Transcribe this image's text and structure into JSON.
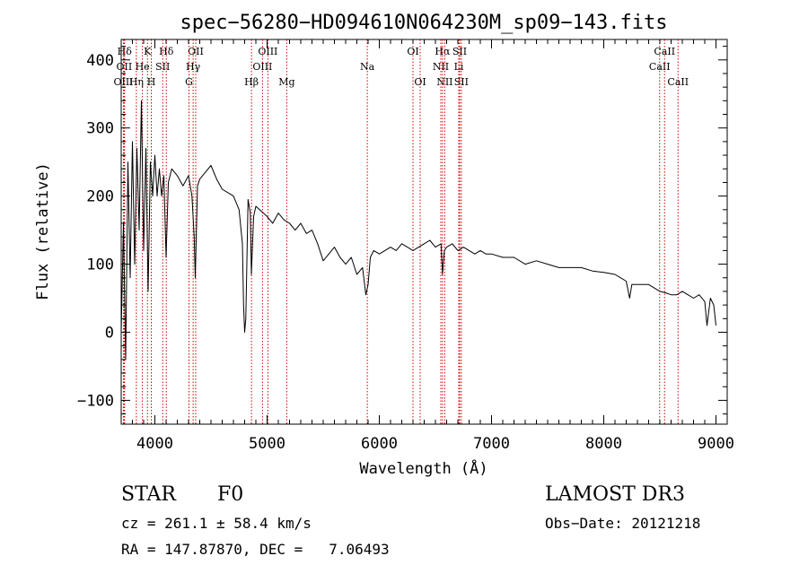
{
  "chart_data": {
    "type": "line",
    "title": "spec−56280−HD094610N064230M_sp09−143.fits",
    "xlabel": "Wavelength (Å)",
    "ylabel": "Flux (relative)",
    "xlim": [
      3700,
      9100
    ],
    "ylim": [
      -135,
      430
    ],
    "xticks": [
      4000,
      5000,
      6000,
      7000,
      8000,
      9000
    ],
    "yticks": [
      -100,
      0,
      100,
      200,
      300,
      400
    ],
    "grid": false,
    "series": [
      {
        "name": "spectrum",
        "color": "#000000",
        "points": [
          [
            3700,
            0
          ],
          [
            3720,
            160
          ],
          [
            3740,
            -40
          ],
          [
            3760,
            250
          ],
          [
            3780,
            80
          ],
          [
            3800,
            280
          ],
          [
            3820,
            100
          ],
          [
            3840,
            270
          ],
          [
            3860,
            150
          ],
          [
            3880,
            340
          ],
          [
            3900,
            120
          ],
          [
            3920,
            270
          ],
          [
            3940,
            60
          ],
          [
            3960,
            250
          ],
          [
            3980,
            200
          ],
          [
            4000,
            260
          ],
          [
            4020,
            200
          ],
          [
            4040,
            240
          ],
          [
            4060,
            200
          ],
          [
            4080,
            230
          ],
          [
            4100,
            110
          ],
          [
            4120,
            220
          ],
          [
            4150,
            240
          ],
          [
            4200,
            230
          ],
          [
            4250,
            215
          ],
          [
            4300,
            230
          ],
          [
            4330,
            200
          ],
          [
            4350,
            140
          ],
          [
            4360,
            80
          ],
          [
            4380,
            215
          ],
          [
            4400,
            225
          ],
          [
            4450,
            235
          ],
          [
            4500,
            245
          ],
          [
            4550,
            225
          ],
          [
            4600,
            210
          ],
          [
            4650,
            205
          ],
          [
            4700,
            200
          ],
          [
            4750,
            180
          ],
          [
            4780,
            130
          ],
          [
            4790,
            40
          ],
          [
            4800,
            0
          ],
          [
            4810,
            20
          ],
          [
            4830,
            195
          ],
          [
            4850,
            175
          ],
          [
            4860,
            85
          ],
          [
            4880,
            170
          ],
          [
            4900,
            185
          ],
          [
            5000,
            170
          ],
          [
            5050,
            160
          ],
          [
            5100,
            175
          ],
          [
            5150,
            165
          ],
          [
            5200,
            160
          ],
          [
            5250,
            150
          ],
          [
            5300,
            160
          ],
          [
            5350,
            145
          ],
          [
            5400,
            150
          ],
          [
            5450,
            130
          ],
          [
            5500,
            105
          ],
          [
            5550,
            115
          ],
          [
            5600,
            125
          ],
          [
            5650,
            110
          ],
          [
            5700,
            100
          ],
          [
            5750,
            110
          ],
          [
            5800,
            85
          ],
          [
            5850,
            95
          ],
          [
            5880,
            55
          ],
          [
            5900,
            70
          ],
          [
            5920,
            110
          ],
          [
            5950,
            120
          ],
          [
            6000,
            115
          ],
          [
            6050,
            120
          ],
          [
            6100,
            125
          ],
          [
            6150,
            120
          ],
          [
            6200,
            130
          ],
          [
            6250,
            125
          ],
          [
            6300,
            120
          ],
          [
            6350,
            125
          ],
          [
            6400,
            130
          ],
          [
            6450,
            135
          ],
          [
            6500,
            125
          ],
          [
            6550,
            130
          ],
          [
            6563,
            85
          ],
          [
            6580,
            120
          ],
          [
            6600,
            125
          ],
          [
            6650,
            130
          ],
          [
            6700,
            120
          ],
          [
            6750,
            125
          ],
          [
            6800,
            120
          ],
          [
            6850,
            115
          ],
          [
            6900,
            120
          ],
          [
            6950,
            115
          ],
          [
            7000,
            115
          ],
          [
            7100,
            110
          ],
          [
            7200,
            110
          ],
          [
            7300,
            100
          ],
          [
            7400,
            105
          ],
          [
            7500,
            100
          ],
          [
            7600,
            95
          ],
          [
            7700,
            95
          ],
          [
            7800,
            95
          ],
          [
            7900,
            90
          ],
          [
            8000,
            88
          ],
          [
            8100,
            85
          ],
          [
            8150,
            80
          ],
          [
            8200,
            75
          ],
          [
            8230,
            50
          ],
          [
            8250,
            70
          ],
          [
            8300,
            70
          ],
          [
            8400,
            70
          ],
          [
            8500,
            60
          ],
          [
            8550,
            58
          ],
          [
            8600,
            55
          ],
          [
            8650,
            55
          ],
          [
            8700,
            60
          ],
          [
            8750,
            55
          ],
          [
            8800,
            50
          ],
          [
            8850,
            55
          ],
          [
            8900,
            45
          ],
          [
            8920,
            10
          ],
          [
            8950,
            50
          ],
          [
            8980,
            40
          ],
          [
            9000,
            10
          ]
        ]
      }
    ],
    "line_markers": [
      {
        "label": "Hδ",
        "wl": 3730,
        "row": 0
      },
      {
        "label": "K",
        "wl": 3934,
        "row": 0
      },
      {
        "label": "Hδ",
        "wl": 4102,
        "row": 0
      },
      {
        "label": "OII",
        "wl": 4364,
        "row": 0
      },
      {
        "label": "OIII",
        "wl": 5007,
        "row": 0
      },
      {
        "label": "OI",
        "wl": 6300,
        "row": 0
      },
      {
        "label": "Hα",
        "wl": 6563,
        "row": 0
      },
      {
        "label": "SII",
        "wl": 6716,
        "row": 0
      },
      {
        "label": "CaII",
        "wl": 8542,
        "row": 0
      },
      {
        "label": "OII",
        "wl": 3727,
        "row": 1
      },
      {
        "label": "He",
        "wl": 3889,
        "row": 1
      },
      {
        "label": "SII",
        "wl": 4070,
        "row": 1
      },
      {
        "label": "Hγ",
        "wl": 4341,
        "row": 1
      },
      {
        "label": "OIII",
        "wl": 4959,
        "row": 1
      },
      {
        "label": "Na",
        "wl": 5893,
        "row": 1
      },
      {
        "label": "NII",
        "wl": 6548,
        "row": 1
      },
      {
        "label": "Li",
        "wl": 6708,
        "row": 1
      },
      {
        "label": "CaII",
        "wl": 8498,
        "row": 1
      },
      {
        "label": "OIII",
        "wl": 3720,
        "row": 2
      },
      {
        "label": "Hη",
        "wl": 3835,
        "row": 2
      },
      {
        "label": "H",
        "wl": 3968,
        "row": 2
      },
      {
        "label": "G",
        "wl": 4304,
        "row": 2
      },
      {
        "label": "Hβ",
        "wl": 4861,
        "row": 2
      },
      {
        "label": "Mg",
        "wl": 5175,
        "row": 2
      },
      {
        "label": "OI",
        "wl": 6364,
        "row": 2
      },
      {
        "label": "NII",
        "wl": 6583,
        "row": 2
      },
      {
        "label": "SII",
        "wl": 6731,
        "row": 2
      },
      {
        "label": "CaII",
        "wl": 8662,
        "row": 2
      }
    ]
  },
  "info": {
    "class": "STAR",
    "subclass": "F0",
    "survey": "LAMOST DR3",
    "cz": "cz = 261.1 ± 58.4 km/s",
    "obs_date": "Obs−Date: 20121218",
    "coords": "RA = 147.87870, DEC =   7.06493"
  }
}
